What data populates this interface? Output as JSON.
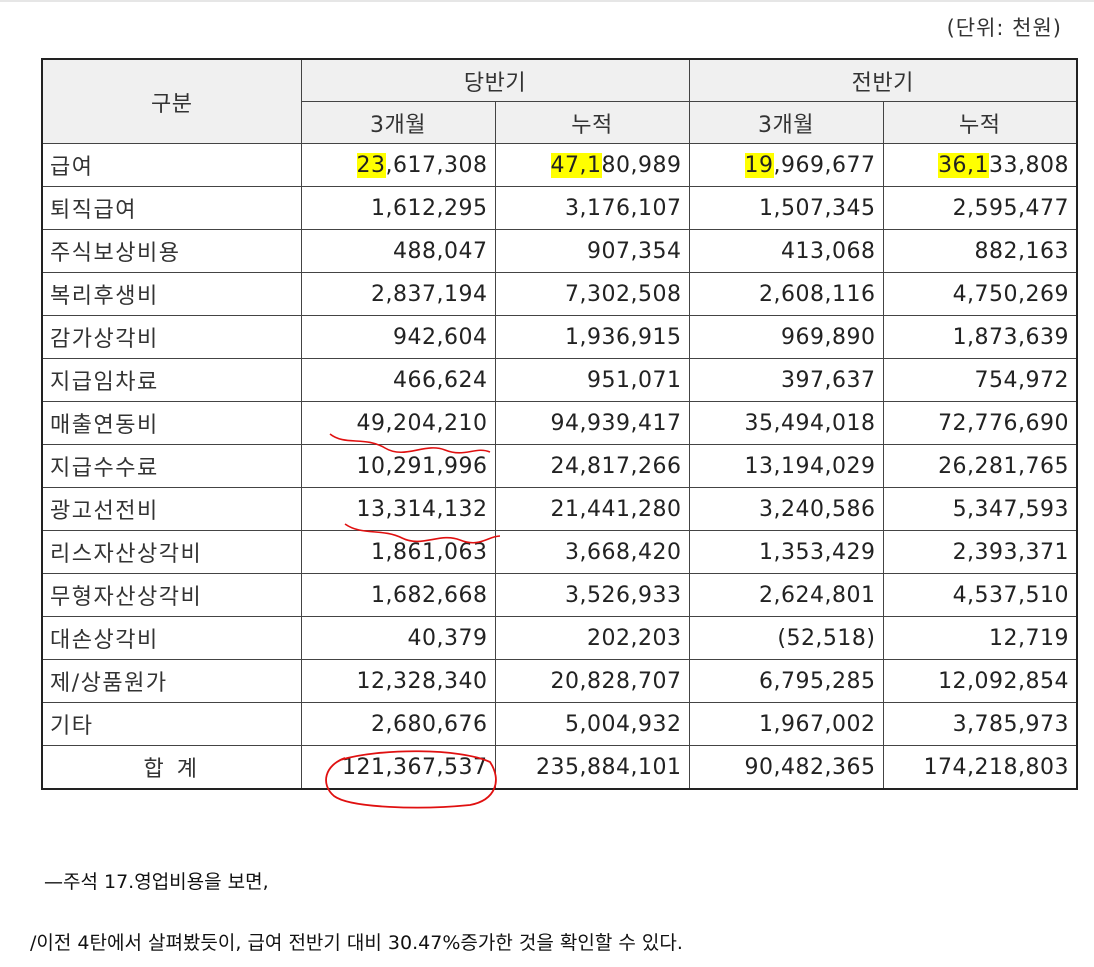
{
  "unit_label": "(단위: 천원)",
  "headers": {
    "category": "구분",
    "current": "당반기",
    "previous": "전반기",
    "three_month": "3개월",
    "cumulative": "누적"
  },
  "rows": [
    {
      "label": "급여",
      "v": [
        "23,617,308",
        "47,180,989",
        "19,969,677",
        "36,133,808"
      ]
    },
    {
      "label": "퇴직급여",
      "v": [
        "1,612,295",
        "3,176,107",
        "1,507,345",
        "2,595,477"
      ]
    },
    {
      "label": "주식보상비용",
      "v": [
        "488,047",
        "907,354",
        "413,068",
        "882,163"
      ]
    },
    {
      "label": "복리후생비",
      "v": [
        "2,837,194",
        "7,302,508",
        "2,608,116",
        "4,750,269"
      ]
    },
    {
      "label": "감가상각비",
      "v": [
        "942,604",
        "1,936,915",
        "969,890",
        "1,873,639"
      ]
    },
    {
      "label": "지급임차료",
      "v": [
        "466,624",
        "951,071",
        "397,637",
        "754,972"
      ]
    },
    {
      "label": "매출연동비",
      "v": [
        "49,204,210",
        "94,939,417",
        "35,494,018",
        "72,776,690"
      ]
    },
    {
      "label": "지급수수료",
      "v": [
        "10,291,996",
        "24,817,266",
        "13,194,029",
        "26,281,765"
      ]
    },
    {
      "label": "광고선전비",
      "v": [
        "13,314,132",
        "21,441,280",
        "3,240,586",
        "5,347,593"
      ]
    },
    {
      "label": "리스자산상각비",
      "v": [
        "1,861,063",
        "3,668,420",
        "1,353,429",
        "2,393,371"
      ]
    },
    {
      "label": "무형자산상각비",
      "v": [
        "1,682,668",
        "3,526,933",
        "2,624,801",
        "4,537,510"
      ]
    },
    {
      "label": "대손상각비",
      "v": [
        "40,379",
        "202,203",
        "(52,518)",
        "12,719"
      ]
    },
    {
      "label": "제/상품원가",
      "v": [
        "12,328,340",
        "20,828,707",
        "6,795,285",
        "12,092,854"
      ]
    },
    {
      "label": "기타",
      "v": [
        "2,680,676",
        "5,004,932",
        "1,967,002",
        "3,785,973"
      ]
    }
  ],
  "total": {
    "label": "합   계",
    "v": [
      "121,367,537",
      "235,884,101",
      "90,482,365",
      "174,218,803"
    ]
  },
  "notes": {
    "line1": "—주석 17.영업비용을 보면,",
    "line2": "/이전 4탄에서 살펴봤듯이, 급여 전반기 대비 30.47%증가한 것을 확인할 수 있다."
  },
  "highlight_color": "#ffff00",
  "annotation_color": "#e01010"
}
